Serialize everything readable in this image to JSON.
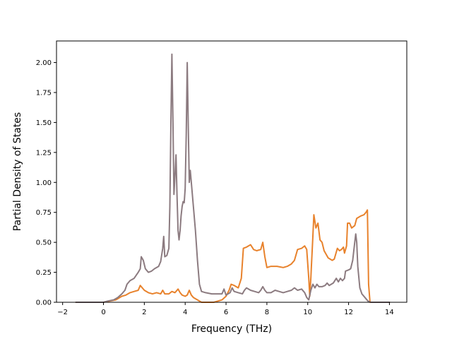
{
  "chart_data": {
    "type": "line",
    "title": "",
    "xlabel": "Frequency (THz)",
    "ylabel": "Partial Density of States",
    "xlim": [
      -2.3,
      14.85
    ],
    "ylim": [
      0.0,
      2.18
    ],
    "xticks": [
      -2,
      0,
      2,
      4,
      6,
      8,
      10,
      12,
      14
    ],
    "yticks": [
      0.0,
      0.25,
      0.5,
      0.75,
      1.0,
      1.25,
      1.5,
      1.75,
      2.0
    ],
    "xtick_labels": [
      "−2",
      "0",
      "2",
      "4",
      "6",
      "8",
      "10",
      "12",
      "14"
    ],
    "ytick_labels": [
      "0.00",
      "0.25",
      "0.50",
      "0.75",
      "1.00",
      "1.25",
      "1.50",
      "1.75",
      "2.00"
    ],
    "grid": false,
    "legend": "none",
    "series": [
      {
        "color": "#e8822c",
        "points": [
          [
            -1.35,
            0.0
          ],
          [
            0.0,
            0.0
          ],
          [
            0.3,
            0.01
          ],
          [
            0.6,
            0.02
          ],
          [
            0.9,
            0.05
          ],
          [
            1.1,
            0.06
          ],
          [
            1.3,
            0.08
          ],
          [
            1.5,
            0.09
          ],
          [
            1.7,
            0.1
          ],
          [
            1.8,
            0.14
          ],
          [
            1.9,
            0.12
          ],
          [
            2.0,
            0.1
          ],
          [
            2.2,
            0.08
          ],
          [
            2.4,
            0.07
          ],
          [
            2.6,
            0.08
          ],
          [
            2.8,
            0.07
          ],
          [
            2.9,
            0.1
          ],
          [
            3.0,
            0.07
          ],
          [
            3.2,
            0.07
          ],
          [
            3.35,
            0.09
          ],
          [
            3.5,
            0.08
          ],
          [
            3.65,
            0.11
          ],
          [
            3.75,
            0.08
          ],
          [
            3.85,
            0.06
          ],
          [
            4.0,
            0.05
          ],
          [
            4.1,
            0.06
          ],
          [
            4.2,
            0.1
          ],
          [
            4.3,
            0.06
          ],
          [
            4.4,
            0.04
          ],
          [
            4.6,
            0.02
          ],
          [
            4.8,
            0.0
          ],
          [
            5.0,
            0.0
          ],
          [
            5.4,
            0.0
          ],
          [
            5.6,
            0.01
          ],
          [
            5.8,
            0.02
          ],
          [
            6.0,
            0.05
          ],
          [
            6.15,
            0.1
          ],
          [
            6.25,
            0.15
          ],
          [
            6.4,
            0.14
          ],
          [
            6.6,
            0.12
          ],
          [
            6.75,
            0.2
          ],
          [
            6.85,
            0.45
          ],
          [
            7.0,
            0.46
          ],
          [
            7.2,
            0.48
          ],
          [
            7.35,
            0.44
          ],
          [
            7.5,
            0.43
          ],
          [
            7.7,
            0.44
          ],
          [
            7.8,
            0.5
          ],
          [
            7.9,
            0.38
          ],
          [
            8.0,
            0.29
          ],
          [
            8.2,
            0.3
          ],
          [
            8.5,
            0.3
          ],
          [
            8.8,
            0.29
          ],
          [
            9.0,
            0.3
          ],
          [
            9.2,
            0.32
          ],
          [
            9.35,
            0.35
          ],
          [
            9.5,
            0.44
          ],
          [
            9.7,
            0.45
          ],
          [
            9.85,
            0.47
          ],
          [
            9.95,
            0.44
          ],
          [
            10.05,
            0.2
          ],
          [
            10.1,
            0.05
          ],
          [
            10.15,
            0.2
          ],
          [
            10.25,
            0.55
          ],
          [
            10.3,
            0.73
          ],
          [
            10.4,
            0.62
          ],
          [
            10.5,
            0.66
          ],
          [
            10.6,
            0.52
          ],
          [
            10.7,
            0.5
          ],
          [
            10.8,
            0.43
          ],
          [
            10.9,
            0.4
          ],
          [
            11.0,
            0.37
          ],
          [
            11.1,
            0.36
          ],
          [
            11.2,
            0.35
          ],
          [
            11.3,
            0.36
          ],
          [
            11.45,
            0.45
          ],
          [
            11.55,
            0.43
          ],
          [
            11.65,
            0.44
          ],
          [
            11.75,
            0.46
          ],
          [
            11.8,
            0.41
          ],
          [
            11.9,
            0.47
          ],
          [
            11.95,
            0.66
          ],
          [
            12.05,
            0.66
          ],
          [
            12.15,
            0.62
          ],
          [
            12.3,
            0.64
          ],
          [
            12.4,
            0.7
          ],
          [
            12.5,
            0.71
          ],
          [
            12.6,
            0.72
          ],
          [
            12.75,
            0.73
          ],
          [
            12.85,
            0.75
          ],
          [
            12.92,
            0.77
          ],
          [
            12.98,
            0.15
          ],
          [
            13.05,
            0.0
          ],
          [
            14.0,
            0.0
          ]
        ]
      },
      {
        "color": "#8c7b80",
        "points": [
          [
            -1.35,
            0.0
          ],
          [
            -0.2,
            0.0
          ],
          [
            0.0,
            0.0
          ],
          [
            0.2,
            0.01
          ],
          [
            0.5,
            0.02
          ],
          [
            0.7,
            0.04
          ],
          [
            0.9,
            0.07
          ],
          [
            1.05,
            0.1
          ],
          [
            1.15,
            0.15
          ],
          [
            1.3,
            0.18
          ],
          [
            1.5,
            0.2
          ],
          [
            1.7,
            0.25
          ],
          [
            1.8,
            0.28
          ],
          [
            1.85,
            0.38
          ],
          [
            1.95,
            0.35
          ],
          [
            2.05,
            0.28
          ],
          [
            2.2,
            0.25
          ],
          [
            2.35,
            0.26
          ],
          [
            2.5,
            0.28
          ],
          [
            2.7,
            0.3
          ],
          [
            2.8,
            0.34
          ],
          [
            2.9,
            0.45
          ],
          [
            2.95,
            0.55
          ],
          [
            3.0,
            0.38
          ],
          [
            3.1,
            0.39
          ],
          [
            3.2,
            0.45
          ],
          [
            3.25,
            0.8
          ],
          [
            3.3,
            1.5
          ],
          [
            3.35,
            2.07
          ],
          [
            3.4,
            1.5
          ],
          [
            3.45,
            0.9
          ],
          [
            3.5,
            1.05
          ],
          [
            3.55,
            1.23
          ],
          [
            3.6,
            0.9
          ],
          [
            3.65,
            0.6
          ],
          [
            3.7,
            0.52
          ],
          [
            3.75,
            0.6
          ],
          [
            3.8,
            0.72
          ],
          [
            3.85,
            0.8
          ],
          [
            3.9,
            0.84
          ],
          [
            3.95,
            0.83
          ],
          [
            4.0,
            0.95
          ],
          [
            4.05,
            1.4
          ],
          [
            4.1,
            2.0
          ],
          [
            4.15,
            1.5
          ],
          [
            4.2,
            1.0
          ],
          [
            4.25,
            1.1
          ],
          [
            4.3,
            1.0
          ],
          [
            4.4,
            0.8
          ],
          [
            4.5,
            0.6
          ],
          [
            4.6,
            0.35
          ],
          [
            4.7,
            0.15
          ],
          [
            4.8,
            0.09
          ],
          [
            5.0,
            0.08
          ],
          [
            5.3,
            0.07
          ],
          [
            5.6,
            0.07
          ],
          [
            5.8,
            0.07
          ],
          [
            5.9,
            0.11
          ],
          [
            6.0,
            0.06
          ],
          [
            6.1,
            0.07
          ],
          [
            6.2,
            0.08
          ],
          [
            6.3,
            0.12
          ],
          [
            6.4,
            0.09
          ],
          [
            6.6,
            0.08
          ],
          [
            6.8,
            0.07
          ],
          [
            6.9,
            0.1
          ],
          [
            7.0,
            0.12
          ],
          [
            7.2,
            0.1
          ],
          [
            7.4,
            0.09
          ],
          [
            7.6,
            0.08
          ],
          [
            7.7,
            0.1
          ],
          [
            7.8,
            0.13
          ],
          [
            7.9,
            0.1
          ],
          [
            8.0,
            0.08
          ],
          [
            8.2,
            0.08
          ],
          [
            8.4,
            0.1
          ],
          [
            8.6,
            0.09
          ],
          [
            8.8,
            0.08
          ],
          [
            9.0,
            0.09
          ],
          [
            9.2,
            0.1
          ],
          [
            9.35,
            0.12
          ],
          [
            9.5,
            0.1
          ],
          [
            9.7,
            0.11
          ],
          [
            9.85,
            0.08
          ],
          [
            9.95,
            0.04
          ],
          [
            10.05,
            0.02
          ],
          [
            10.15,
            0.1
          ],
          [
            10.25,
            0.15
          ],
          [
            10.35,
            0.12
          ],
          [
            10.45,
            0.15
          ],
          [
            10.55,
            0.13
          ],
          [
            10.7,
            0.13
          ],
          [
            10.85,
            0.14
          ],
          [
            10.95,
            0.16
          ],
          [
            11.05,
            0.14
          ],
          [
            11.15,
            0.15
          ],
          [
            11.25,
            0.16
          ],
          [
            11.4,
            0.2
          ],
          [
            11.5,
            0.17
          ],
          [
            11.6,
            0.2
          ],
          [
            11.7,
            0.18
          ],
          [
            11.8,
            0.2
          ],
          [
            11.85,
            0.26
          ],
          [
            12.0,
            0.27
          ],
          [
            12.1,
            0.28
          ],
          [
            12.2,
            0.35
          ],
          [
            12.3,
            0.5
          ],
          [
            12.35,
            0.57
          ],
          [
            12.4,
            0.5
          ],
          [
            12.45,
            0.3
          ],
          [
            12.55,
            0.12
          ],
          [
            12.65,
            0.07
          ],
          [
            12.8,
            0.04
          ],
          [
            12.95,
            0.01
          ],
          [
            13.1,
            0.0
          ],
          [
            14.0,
            0.0
          ]
        ]
      }
    ]
  }
}
